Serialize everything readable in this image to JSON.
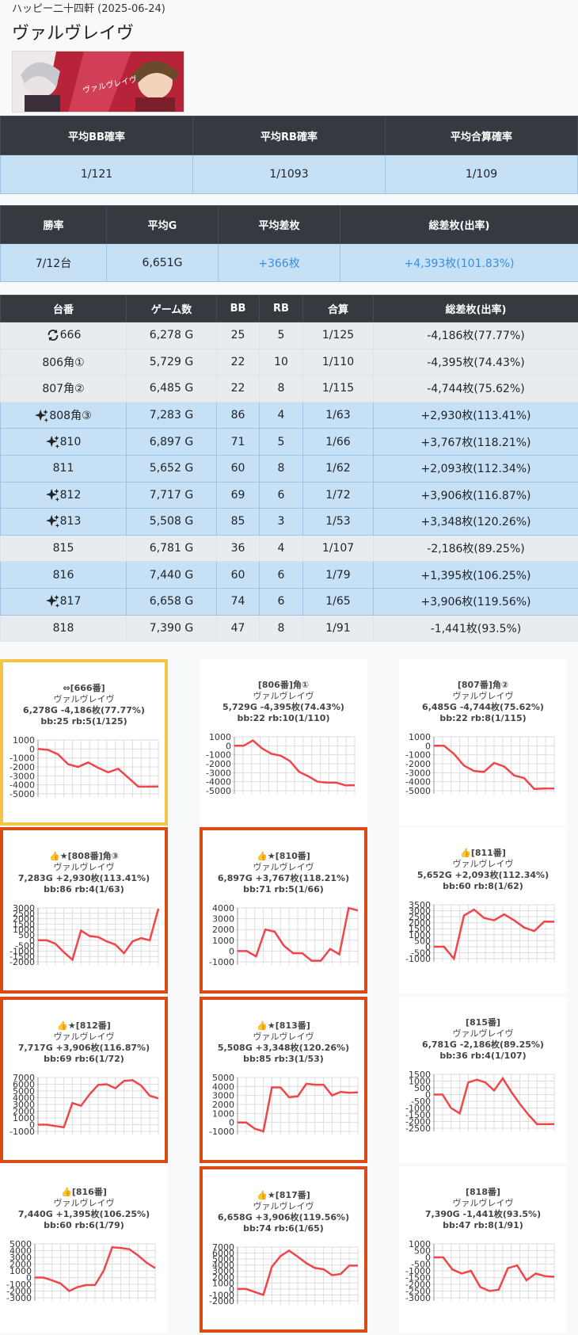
{
  "header": {
    "hall": "ハッピー二十四軒 (2025-06-24)",
    "machine": "ヴァルヴレイヴ"
  },
  "prob_table": {
    "headers": [
      "平均BB確率",
      "平均RB確率",
      "平均合算確率"
    ],
    "values": [
      "1/121",
      "1/1093",
      "1/109"
    ]
  },
  "summary_table": {
    "headers": [
      "勝率",
      "平均G",
      "平均差枚",
      "総差枚(出率)"
    ],
    "values": [
      "7/12台",
      "6,651G",
      "+366枚",
      "+4,393枚(101.83%)"
    ]
  },
  "machines_table": {
    "headers": [
      "台番",
      "ゲーム数",
      "BB",
      "RB",
      "合算",
      "総差枚(出率)"
    ],
    "rows": [
      {
        "id": "666",
        "icon": "rotate-icon",
        "games": "6,278 G",
        "bb": "25",
        "rb": "5",
        "total": "1/125",
        "diff": "-4,186枚(77.77%)",
        "style": "gray"
      },
      {
        "id": "806角①",
        "icon": "",
        "games": "5,729 G",
        "bb": "22",
        "rb": "10",
        "total": "1/110",
        "diff": "-4,395枚(74.43%)",
        "style": "gray"
      },
      {
        "id": "807角②",
        "icon": "",
        "games": "6,485 G",
        "bb": "22",
        "rb": "8",
        "total": "1/115",
        "diff": "-4,744枚(75.62%)",
        "style": "gray"
      },
      {
        "id": "808角③",
        "icon": "sparkle-icon",
        "games": "7,283 G",
        "bb": "86",
        "rb": "4",
        "total": "1/63",
        "diff": "+2,930枚(113.41%)",
        "style": "blue"
      },
      {
        "id": "810",
        "icon": "sparkle-icon",
        "games": "6,897 G",
        "bb": "71",
        "rb": "5",
        "total": "1/66",
        "diff": "+3,767枚(118.21%)",
        "style": "blue"
      },
      {
        "id": "811",
        "icon": "",
        "games": "5,652 G",
        "bb": "60",
        "rb": "8",
        "total": "1/62",
        "diff": "+2,093枚(112.34%)",
        "style": "blue"
      },
      {
        "id": "812",
        "icon": "sparkle-icon",
        "games": "7,717 G",
        "bb": "69",
        "rb": "6",
        "total": "1/72",
        "diff": "+3,906枚(116.87%)",
        "style": "blue"
      },
      {
        "id": "813",
        "icon": "sparkle-icon",
        "games": "5,508 G",
        "bb": "85",
        "rb": "3",
        "total": "1/53",
        "diff": "+3,348枚(120.26%)",
        "style": "blue"
      },
      {
        "id": "815",
        "icon": "",
        "games": "6,781 G",
        "bb": "36",
        "rb": "4",
        "total": "1/107",
        "diff": "-2,186枚(89.25%)",
        "style": "gray"
      },
      {
        "id": "816",
        "icon": "",
        "games": "7,440 G",
        "bb": "60",
        "rb": "6",
        "total": "1/79",
        "diff": "+1,395枚(106.25%)",
        "style": "blue"
      },
      {
        "id": "817",
        "icon": "sparkle-icon",
        "games": "6,658 G",
        "bb": "74",
        "rb": "6",
        "total": "1/65",
        "diff": "+3,906枚(119.56%)",
        "style": "blue"
      },
      {
        "id": "818",
        "icon": "",
        "games": "7,390 G",
        "bb": "47",
        "rb": "8",
        "total": "1/91",
        "diff": "-1,441枚(93.5%)",
        "style": "gray"
      }
    ]
  },
  "chart_data": [
    {
      "type": "line",
      "title": "⇔[666番]",
      "subtitle": [
        "ヴァルヴレイヴ",
        "6,278G -4,186枚(77.77%)",
        "bb:25 rb:5(1/125)"
      ],
      "ylim": [
        -5000,
        1000
      ],
      "yticks": [
        1000,
        0,
        -1000,
        -2000,
        -3000,
        -4000,
        -5000
      ],
      "values": [
        0,
        -100,
        -600,
        -1700,
        -2000,
        -1500,
        -2100,
        -2600,
        -2200,
        -3200,
        -4200,
        -4200,
        -4186
      ],
      "highlight": "yellow"
    },
    {
      "type": "line",
      "title": "[806番]角①",
      "subtitle": [
        "ヴァルヴレイヴ",
        "5,729G -4,395枚(74.43%)",
        "bb:22 rb:10(1/110)"
      ],
      "ylim": [
        -5000,
        1000
      ],
      "yticks": [
        1000,
        0,
        -1000,
        -2000,
        -3000,
        -4000,
        -5000
      ],
      "values": [
        0,
        0,
        600,
        -300,
        -900,
        -1100,
        -1700,
        -2900,
        -3400,
        -4000,
        -4100,
        -4100,
        -4400,
        -4395
      ],
      "highlight": ""
    },
    {
      "type": "line",
      "title": "[807番]角②",
      "subtitle": [
        "ヴァルヴレイヴ",
        "6,485G -4,744枚(75.62%)",
        "bb:22 rb:8(1/115)"
      ],
      "ylim": [
        -5000,
        1000
      ],
      "yticks": [
        1000,
        0,
        -1000,
        -2000,
        -3000,
        -4000,
        -5000
      ],
      "values": [
        0,
        0,
        -900,
        -2200,
        -2800,
        -2900,
        -1900,
        -2300,
        -3300,
        -3600,
        -4800,
        -4750,
        -4744
      ],
      "highlight": ""
    },
    {
      "type": "line",
      "title": "👍★[808番]角③",
      "subtitle": [
        "ヴァルヴレイヴ",
        "7,283G +2,930枚(113.41%)",
        "bb:86 rb:4(1/63)"
      ],
      "ylim": [
        -2000,
        3000
      ],
      "yticks": [
        3000,
        2500,
        2000,
        1500,
        1000,
        500,
        0,
        -500,
        -1000,
        -1500,
        -2000
      ],
      "values": [
        0,
        0,
        -300,
        -1100,
        -1800,
        900,
        400,
        300,
        -100,
        -400,
        -1200,
        -100,
        200,
        0,
        2930
      ],
      "highlight": "red"
    },
    {
      "type": "line",
      "title": "👍★[810番]",
      "subtitle": [
        "ヴァルヴレイヴ",
        "6,897G +3,767枚(118.21%)",
        "bb:71 rb:5(1/66)"
      ],
      "ylim": [
        -1000,
        4000
      ],
      "yticks": [
        4000,
        3000,
        2000,
        1000,
        0,
        -1000
      ],
      "values": [
        0,
        0,
        -500,
        2000,
        1800,
        500,
        -200,
        -200,
        -900,
        -900,
        200,
        -300,
        4000,
        3767
      ],
      "highlight": "red"
    },
    {
      "type": "line",
      "title": "👍[811番]",
      "subtitle": [
        "ヴァルヴレイヴ",
        "5,652G +2,093枚(112.34%)",
        "bb:60 rb:8(1/62)"
      ],
      "ylim": [
        -1000,
        3500
      ],
      "yticks": [
        3500,
        3000,
        2500,
        2000,
        1500,
        1000,
        500,
        0,
        -500,
        -1000
      ],
      "values": [
        0,
        0,
        -1000,
        2600,
        3100,
        2400,
        2200,
        2700,
        2200,
        1600,
        1300,
        2100,
        2093
      ],
      "highlight": ""
    },
    {
      "type": "line",
      "title": "👍★[812番]",
      "subtitle": [
        "ヴァルヴレイヴ",
        "7,717G +3,906枚(116.87%)",
        "bb:69 rb:6(1/72)"
      ],
      "ylim": [
        -1000,
        7000
      ],
      "yticks": [
        7000,
        6000,
        5000,
        4000,
        3000,
        2000,
        1000,
        0,
        -1000
      ],
      "values": [
        0,
        0,
        -200,
        -400,
        3200,
        2800,
        4500,
        5900,
        6000,
        5400,
        6500,
        6600,
        5800,
        4300,
        3906
      ],
      "highlight": "red"
    },
    {
      "type": "line",
      "title": "👍★[813番]",
      "subtitle": [
        "ヴァルヴレイヴ",
        "5,508G +3,348枚(120.26%)",
        "bb:85 rb:3(1/53)"
      ],
      "ylim": [
        -1000,
        5000
      ],
      "yticks": [
        5000,
        4000,
        3000,
        2000,
        1000,
        0,
        -1000
      ],
      "values": [
        0,
        0,
        -700,
        -1000,
        3900,
        3900,
        2800,
        2900,
        4300,
        4200,
        4200,
        3000,
        3400,
        3300,
        3348
      ],
      "highlight": "red"
    },
    {
      "type": "line",
      "title": "[815番]",
      "subtitle": [
        "ヴァルヴレイヴ",
        "6,781G -2,186枚(89.25%)",
        "bb:36 rb:4(1/107)"
      ],
      "ylim": [
        -2500,
        1500
      ],
      "yticks": [
        1500,
        1000,
        500,
        0,
        -500,
        -1000,
        -1500,
        -2000,
        -2500
      ],
      "values": [
        0,
        0,
        -1000,
        -1400,
        900,
        1100,
        900,
        300,
        1200,
        200,
        -700,
        -1500,
        -2200,
        -2200,
        -2186
      ],
      "highlight": ""
    },
    {
      "type": "line",
      "title": "👍[816番]",
      "subtitle": [
        "ヴァルヴレイヴ",
        "7,440G +1,395枚(106.25%)",
        "bb:60 rb:6(1/79)"
      ],
      "ylim": [
        -3000,
        5000
      ],
      "yticks": [
        5000,
        4000,
        3000,
        2000,
        1000,
        0,
        -1000,
        -2000,
        -3000
      ],
      "values": [
        0,
        0,
        -400,
        -900,
        -2000,
        -1400,
        -1100,
        -1100,
        1000,
        4500,
        4400,
        4200,
        3300,
        2200,
        1395
      ],
      "highlight": ""
    },
    {
      "type": "line",
      "title": "👍★[817番]",
      "subtitle": [
        "ヴァルヴレイヴ",
        "6,658G +3,906枚(119.56%)",
        "bb:74 rb:6(1/65)"
      ],
      "ylim": [
        -2000,
        7000
      ],
      "yticks": [
        7000,
        6000,
        5000,
        4000,
        3000,
        2000,
        1000,
        0,
        -1000,
        -2000
      ],
      "values": [
        0,
        0,
        -500,
        -1000,
        3700,
        5500,
        6400,
        5400,
        4300,
        3500,
        3300,
        2300,
        2500,
        3900,
        3906
      ],
      "highlight": "red"
    },
    {
      "type": "line",
      "title": "[818番]",
      "subtitle": [
        "ヴァルヴレイヴ",
        "7,390G -1,441枚(93.5%)",
        "bb:47 rb:8(1/91)"
      ],
      "ylim": [
        -3000,
        1000
      ],
      "yticks": [
        1000,
        500,
        0,
        -500,
        -1000,
        -1500,
        -2000,
        -2500,
        -3000
      ],
      "values": [
        0,
        0,
        -900,
        -1200,
        -1000,
        -2200,
        -2500,
        -2400,
        -800,
        -600,
        -1700,
        -1200,
        -1400,
        -1441
      ],
      "highlight": ""
    }
  ],
  "colors": {
    "line": "#f0464b",
    "header_bg": "#343a40",
    "positive_row": "#c6e0f5",
    "negative_row": "#e9ecef",
    "highlight_yellow": "#f4c542",
    "highlight_red": "#dc4b16",
    "positive_text": "#3b8ee0"
  }
}
